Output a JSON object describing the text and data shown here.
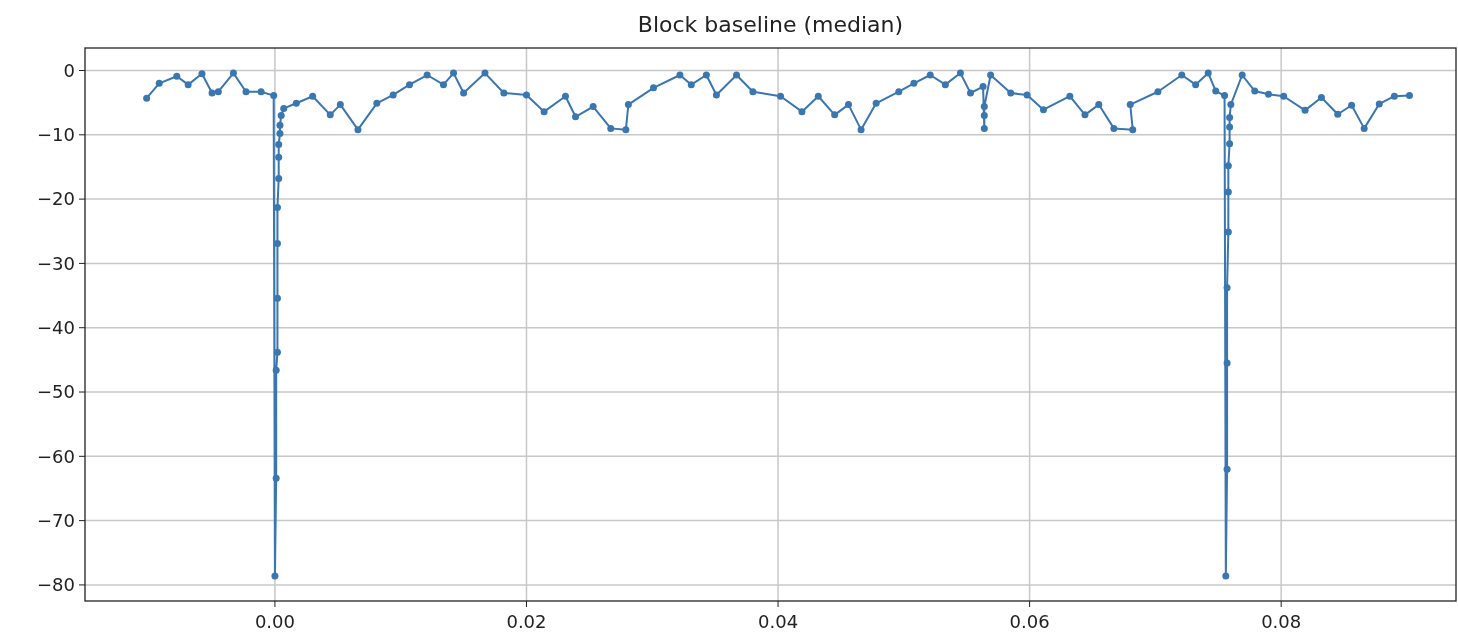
{
  "chart_data": {
    "type": "line",
    "title": "Block baseline (median)",
    "xlim": [
      -0.0151,
      0.0939
    ],
    "ylim": [
      -82.5,
      3.5
    ],
    "xticks": [
      {
        "value": 0,
        "label": "0.00"
      },
      {
        "value": 0.02,
        "label": "0.02"
      },
      {
        "value": 0.04,
        "label": "0.04"
      },
      {
        "value": 0.06,
        "label": "0.06"
      },
      {
        "value": 0.08,
        "label": "0.08"
      }
    ],
    "yticks": [
      0,
      {
        "value": -10,
        "label": "−10"
      },
      {
        "value": -20,
        "label": "−20"
      },
      {
        "value": -30,
        "label": "−30"
      },
      {
        "value": -40,
        "label": "−40"
      },
      {
        "value": -50,
        "label": "−50"
      },
      {
        "value": -60,
        "label": "−60"
      },
      {
        "value": -70,
        "label": "−70"
      },
      {
        "value": -80,
        "label": "−80"
      }
    ],
    "grid": true,
    "marker": "circle",
    "line_style": "solid",
    "series": [
      {
        "color": "#3a76af",
        "x": [
          -0.0102,
          -0.0092,
          -0.0078,
          -0.0069,
          -0.0058,
          -0.005,
          -0.0045,
          -0.0033,
          -0.0023,
          -0.0011,
          -0.0001,
          0.0,
          0.0001,
          0.0001,
          0.0002,
          0.0002,
          0.0002,
          0.0002,
          0.0003,
          0.0003,
          0.0003,
          0.0004,
          0.0004,
          0.0005,
          0.0007,
          0.0017,
          0.003,
          0.0044,
          0.0052,
          0.0066,
          0.0081,
          0.0094,
          0.0107,
          0.0121,
          0.0134,
          0.0142,
          0.015,
          0.0167,
          0.0182,
          0.02,
          0.0214,
          0.0231,
          0.0239,
          0.0253,
          0.0267,
          0.0279,
          0.0281,
          0.0301,
          0.0322,
          0.0331,
          0.0343,
          0.0351,
          0.0367,
          0.038,
          0.0402,
          0.0419,
          0.0432,
          0.0445,
          0.0456,
          0.0466,
          0.0478,
          0.0496,
          0.0508,
          0.0521,
          0.0533,
          0.0545,
          0.0553,
          0.0563,
          0.0564,
          0.0564,
          0.0564,
          0.0569,
          0.0585,
          0.0598,
          0.0611,
          0.0632,
          0.0644,
          0.0655,
          0.0667,
          0.0682,
          0.068,
          0.0702,
          0.0721,
          0.0732,
          0.0742,
          0.0748,
          0.0755,
          0.0756,
          0.0757,
          0.0757,
          0.0757,
          0.0758,
          0.0758,
          0.0758,
          0.0759,
          0.0759,
          0.0759,
          0.076,
          0.0769,
          0.0779,
          0.079,
          0.0802,
          0.0819,
          0.0832,
          0.0845,
          0.0856,
          0.0866,
          0.0878,
          0.089,
          0.0902
        ],
        "values": [
          -4.3,
          -2.0,
          -0.9,
          -2.2,
          -0.5,
          -3.5,
          -3.3,
          -0.4,
          -3.3,
          -3.3,
          -3.9,
          -78.6,
          -63.4,
          -46.6,
          -43.8,
          -35.4,
          -26.9,
          -21.3,
          -16.8,
          -13.5,
          -11.5,
          -9.8,
          -8.5,
          -7.0,
          -5.9,
          -5.1,
          -4.0,
          -6.9,
          -5.3,
          -9.2,
          -5.1,
          -3.8,
          -2.2,
          -0.7,
          -2.2,
          -0.4,
          -3.5,
          -0.4,
          -3.5,
          -3.8,
          -6.4,
          -4.0,
          -7.2,
          -5.6,
          -9.0,
          -9.2,
          -5.3,
          -2.7,
          -0.7,
          -2.2,
          -0.7,
          -3.8,
          -0.7,
          -3.3,
          -4.0,
          -6.4,
          -4.0,
          -6.9,
          -5.3,
          -9.2,
          -5.1,
          -3.3,
          -2.0,
          -0.7,
          -2.2,
          -0.4,
          -3.5,
          -2.5,
          -9.0,
          -7.0,
          -5.6,
          -0.7,
          -3.5,
          -3.8,
          -6.1,
          -4.0,
          -6.9,
          -5.3,
          -9.0,
          -9.2,
          -5.3,
          -3.3,
          -0.7,
          -2.2,
          -0.4,
          -3.2,
          -3.9,
          -78.6,
          -62.0,
          -45.5,
          -33.8,
          -25.1,
          -18.9,
          -14.8,
          -11.4,
          -8.8,
          -7.3,
          -5.3,
          -0.7,
          -3.2,
          -3.7,
          -4.0,
          -6.2,
          -4.2,
          -6.8,
          -5.4,
          -9.0,
          -5.2,
          -4.0,
          -3.9
        ]
      }
    ]
  }
}
